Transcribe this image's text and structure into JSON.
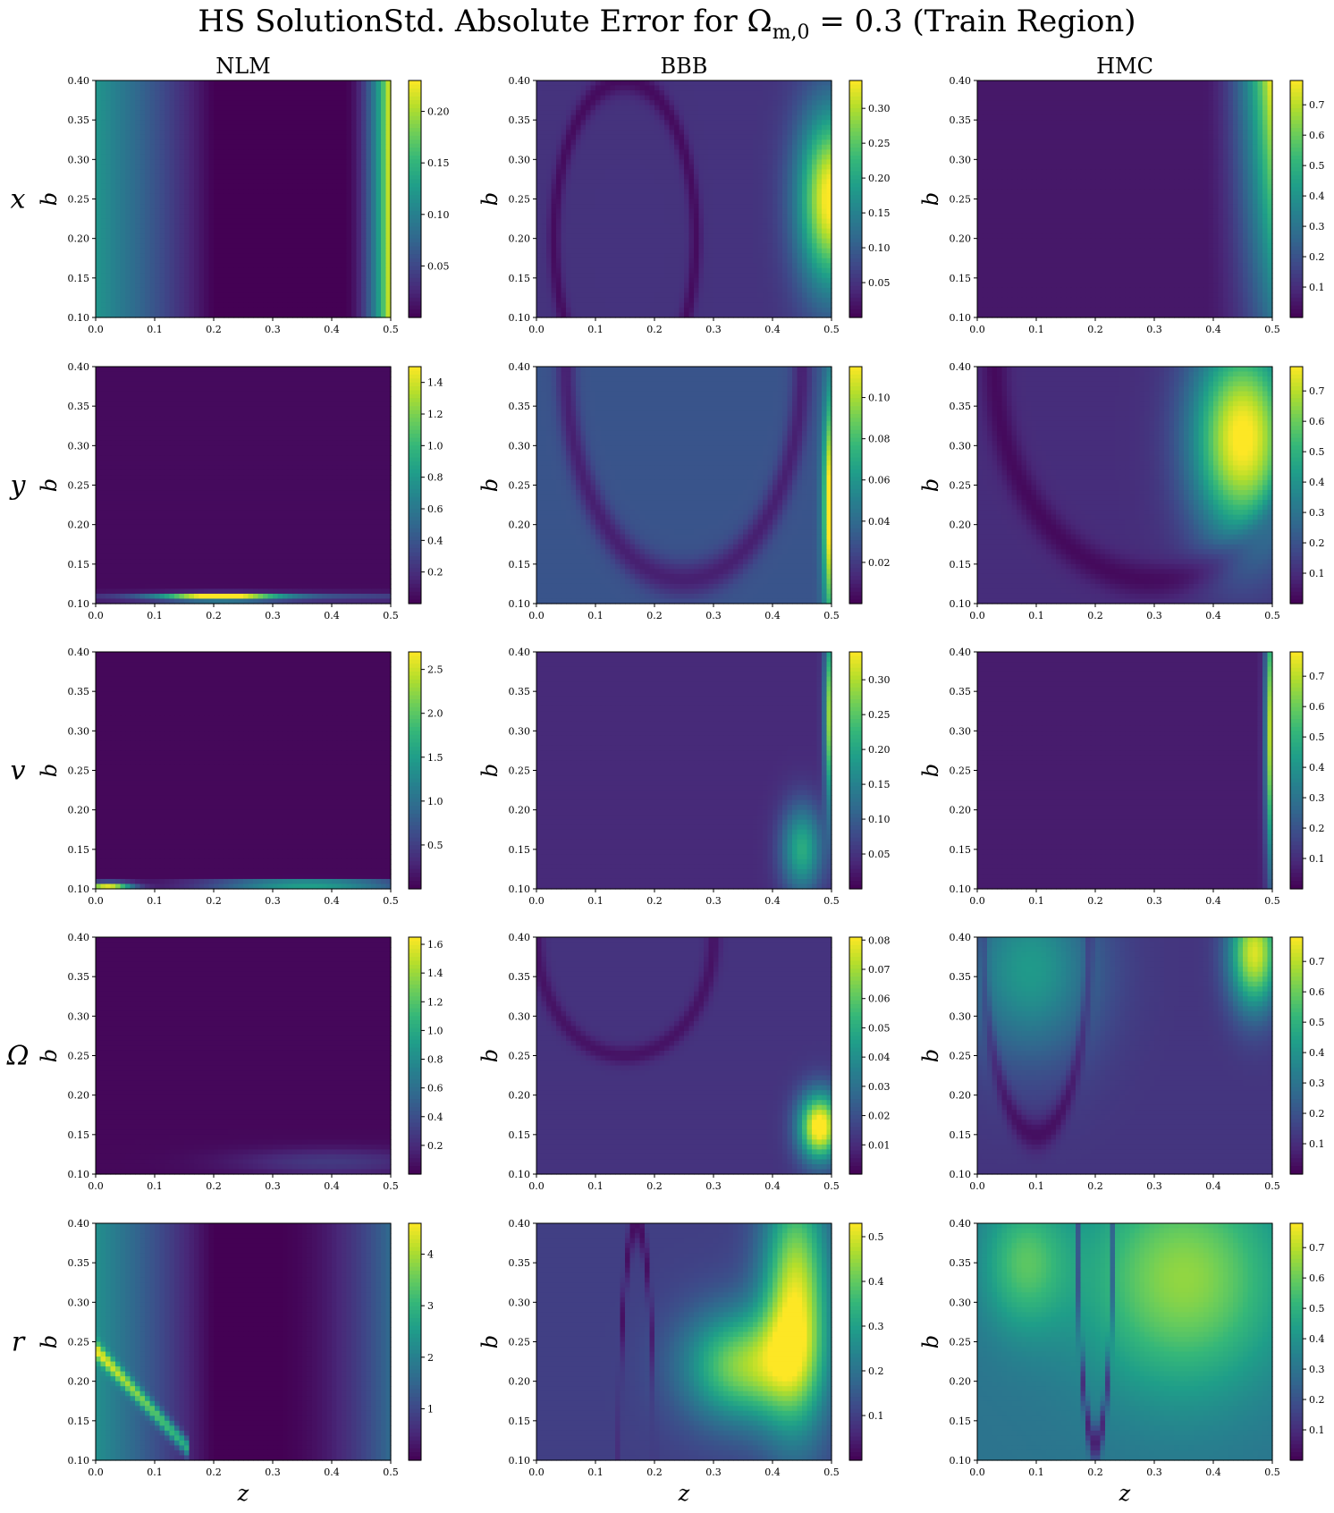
{
  "title": {
    "before": "HS SolutionStd. Absolute Error for Ω",
    "sub": "m,0",
    "after": " = 0.3 (Train Region)"
  },
  "columns": [
    "NLM",
    "BBB",
    "HMC"
  ],
  "rows": [
    "x",
    "y",
    "v",
    "Ω",
    "r"
  ],
  "colormap": [
    "#440154",
    "#482878",
    "#3e4989",
    "#31688e",
    "#26828e",
    "#1f9e89",
    "#35b779",
    "#6ece58",
    "#b5de2b",
    "#fde725"
  ],
  "chart_data": {
    "type": "heatmap",
    "xlabel": "z",
    "ylabel": "b",
    "xlim": [
      0.0,
      0.5
    ],
    "ylim": [
      0.1,
      0.4
    ],
    "xticks": [
      "0.0",
      "0.1",
      "0.2",
      "0.3",
      "0.4",
      "0.5"
    ],
    "yticks": [
      "0.10",
      "0.15",
      "0.20",
      "0.25",
      "0.30",
      "0.35",
      "0.40"
    ],
    "panels": [
      {
        "row": "x",
        "column": "NLM",
        "vmax": 0.23,
        "colorbar_ticks": [
          "0.05",
          "0.10",
          "0.15",
          "0.20"
        ],
        "colorbar_values": [
          0.05,
          0.1,
          0.15,
          0.2
        ],
        "features": [
          {
            "kind": "left",
            "amp": 0.12
          },
          {
            "kind": "right",
            "z0": 0.42,
            "amp": 0.23
          }
        ]
      },
      {
        "row": "x",
        "column": "BBB",
        "vmax": 0.34,
        "colorbar_ticks": [
          "0.05",
          "0.10",
          "0.15",
          "0.20",
          "0.25",
          "0.30"
        ],
        "colorbar_values": [
          0.05,
          0.1,
          0.15,
          0.2,
          0.25,
          0.3
        ],
        "features": [
          {
            "kind": "base",
            "amp": 0.05
          },
          {
            "kind": "blob",
            "z": 0.5,
            "b": 0.25,
            "sz": 0.04,
            "sb": 0.08,
            "amp": 0.3
          },
          {
            "kind": "arc",
            "z": 0.15,
            "b": 0.2,
            "rz": 0.12,
            "rb": 0.2,
            "amp": -0.04
          }
        ]
      },
      {
        "row": "x",
        "column": "HMC",
        "vmax": 0.78,
        "colorbar_ticks": [
          "0.1",
          "0.2",
          "0.3",
          "0.4",
          "0.5",
          "0.6",
          "0.7"
        ],
        "colorbar_values": [
          0.1,
          0.2,
          0.3,
          0.4,
          0.5,
          0.6,
          0.7
        ],
        "features": [
          {
            "kind": "base",
            "amp": 0.05
          },
          {
            "kind": "right",
            "z0": 0.38,
            "amp": 0.75,
            "btop": true
          }
        ]
      },
      {
        "row": "y",
        "column": "NLM",
        "vmax": 1.5,
        "colorbar_ticks": [
          "0.2",
          "0.4",
          "0.6",
          "0.8",
          "1.0",
          "1.2",
          "1.4"
        ],
        "colorbar_values": [
          0.2,
          0.4,
          0.6,
          0.8,
          1.0,
          1.2,
          1.4
        ],
        "features": [
          {
            "kind": "base",
            "amp": 0.04
          },
          {
            "kind": "band",
            "b": 0.108,
            "sb": 0.003,
            "z": 0.21,
            "sz": 0.07,
            "amp": 1.45
          },
          {
            "kind": "band",
            "b": 0.108,
            "sb": 0.004,
            "z": 0.3,
            "sz": 0.25,
            "amp": 0.35
          }
        ]
      },
      {
        "row": "y",
        "column": "BBB",
        "vmax": 0.115,
        "colorbar_ticks": [
          "0.02",
          "0.04",
          "0.06",
          "0.08",
          "0.10"
        ],
        "colorbar_values": [
          0.02,
          0.04,
          0.06,
          0.08,
          0.1
        ],
        "features": [
          {
            "kind": "base",
            "amp": 0.03
          },
          {
            "kind": "blob",
            "z": 0.5,
            "b": 0.22,
            "sz": 0.01,
            "sb": 0.1,
            "amp": 0.1
          },
          {
            "kind": "arc",
            "z": 0.25,
            "b": 0.4,
            "rz": 0.2,
            "rb": 0.27,
            "amp": -0.02
          }
        ]
      },
      {
        "row": "y",
        "column": "HMC",
        "vmax": 0.78,
        "colorbar_ticks": [
          "0.1",
          "0.2",
          "0.3",
          "0.4",
          "0.5",
          "0.6",
          "0.7"
        ],
        "colorbar_values": [
          0.1,
          0.2,
          0.3,
          0.4,
          0.5,
          0.6,
          0.7
        ],
        "features": [
          {
            "kind": "base",
            "amp": 0.1
          },
          {
            "kind": "blob",
            "z": 0.45,
            "b": 0.31,
            "sz": 0.06,
            "sb": 0.09,
            "amp": 0.7
          },
          {
            "kind": "arc",
            "z": 0.3,
            "b": 0.4,
            "rz": 0.27,
            "rb": 0.27,
            "amp": -0.08
          }
        ]
      },
      {
        "row": "v",
        "column": "NLM",
        "vmax": 2.7,
        "colorbar_ticks": [
          "0.5",
          "1.0",
          "1.5",
          "2.0",
          "2.5"
        ],
        "colorbar_values": [
          0.5,
          1.0,
          1.5,
          2.0,
          2.5
        ],
        "features": [
          {
            "kind": "base",
            "amp": 0.05
          },
          {
            "kind": "band",
            "b": 0.106,
            "sb": 0.003,
            "z": 0.36,
            "sz": 0.12,
            "amp": 2.3
          },
          {
            "kind": "band",
            "b": 0.104,
            "sb": 0.003,
            "z": 0.02,
            "sz": 0.03,
            "amp": 2.6
          }
        ]
      },
      {
        "row": "v",
        "column": "BBB",
        "vmax": 0.34,
        "colorbar_ticks": [
          "0.05",
          "0.10",
          "0.15",
          "0.20",
          "0.25",
          "0.30"
        ],
        "colorbar_values": [
          0.05,
          0.1,
          0.15,
          0.2,
          0.25,
          0.3
        ],
        "features": [
          {
            "kind": "base",
            "amp": 0.04
          },
          {
            "kind": "blob",
            "z": 0.45,
            "b": 0.15,
            "sz": 0.025,
            "sb": 0.04,
            "amp": 0.17
          },
          {
            "kind": "blob",
            "z": 0.5,
            "b": 0.32,
            "sz": 0.008,
            "sb": 0.08,
            "amp": 0.28
          }
        ]
      },
      {
        "row": "v",
        "column": "HMC",
        "vmax": 0.78,
        "colorbar_ticks": [
          "0.1",
          "0.2",
          "0.3",
          "0.4",
          "0.5",
          "0.6",
          "0.7"
        ],
        "colorbar_values": [
          0.1,
          0.2,
          0.3,
          0.4,
          0.5,
          0.6,
          0.7
        ],
        "features": [
          {
            "kind": "base",
            "amp": 0.06
          },
          {
            "kind": "blob",
            "z": 0.5,
            "b": 0.3,
            "sz": 0.008,
            "sb": 0.12,
            "amp": 0.72
          }
        ]
      },
      {
        "row": "Ω",
        "column": "NLM",
        "vmax": 1.65,
        "colorbar_ticks": [
          "0.2",
          "0.4",
          "0.6",
          "0.8",
          "1.0",
          "1.2",
          "1.4",
          "1.6"
        ],
        "colorbar_values": [
          0.2,
          0.4,
          0.6,
          0.8,
          1.0,
          1.2,
          1.4,
          1.6
        ],
        "features": [
          {
            "kind": "base",
            "amp": 0.03
          },
          {
            "kind": "band",
            "b": 0.115,
            "sb": 0.012,
            "z": 0.4,
            "sz": 0.12,
            "amp": 0.25
          }
        ]
      },
      {
        "row": "Ω",
        "column": "BBB",
        "vmax": 0.081,
        "colorbar_ticks": [
          "0.01",
          "0.02",
          "0.03",
          "0.04",
          "0.05",
          "0.06",
          "0.07",
          "0.08"
        ],
        "colorbar_values": [
          0.01,
          0.02,
          0.03,
          0.04,
          0.05,
          0.06,
          0.07,
          0.08
        ],
        "features": [
          {
            "kind": "base",
            "amp": 0.012
          },
          {
            "kind": "blob",
            "z": 0.48,
            "b": 0.16,
            "sz": 0.025,
            "sb": 0.03,
            "amp": 0.075
          },
          {
            "kind": "arc",
            "z": 0.15,
            "b": 0.4,
            "rz": 0.15,
            "rb": 0.15,
            "amp": -0.008
          }
        ]
      },
      {
        "row": "Ω",
        "column": "HMC",
        "vmax": 0.78,
        "colorbar_ticks": [
          "0.1",
          "0.2",
          "0.3",
          "0.4",
          "0.5",
          "0.6",
          "0.7"
        ],
        "colorbar_values": [
          0.1,
          0.2,
          0.3,
          0.4,
          0.5,
          0.6,
          0.7
        ],
        "features": [
          {
            "kind": "base",
            "amp": 0.12
          },
          {
            "kind": "blob",
            "z": 0.09,
            "b": 0.36,
            "sz": 0.08,
            "sb": 0.08,
            "amp": 0.3
          },
          {
            "kind": "blob",
            "z": 0.47,
            "b": 0.38,
            "sz": 0.03,
            "sb": 0.05,
            "amp": 0.62
          },
          {
            "kind": "arc",
            "z": 0.1,
            "b": 0.4,
            "rz": 0.09,
            "rb": 0.25,
            "amp": -0.1
          }
        ]
      },
      {
        "row": "r",
        "column": "NLM",
        "vmax": 4.6,
        "colorbar_ticks": [
          "1",
          "2",
          "3",
          "4"
        ],
        "colorbar_values": [
          1,
          2,
          3,
          4
        ],
        "features": [
          {
            "kind": "left",
            "amp": 2.3
          },
          {
            "kind": "right",
            "z0": 0.3,
            "amp": 1.6
          },
          {
            "kind": "diag",
            "amp": 2.3
          }
        ]
      },
      {
        "row": "r",
        "column": "BBB",
        "vmax": 0.53,
        "colorbar_ticks": [
          "0.1",
          "0.2",
          "0.3",
          "0.4",
          "0.5"
        ],
        "colorbar_values": [
          0.1,
          0.2,
          0.3,
          0.4,
          0.5
        ],
        "features": [
          {
            "kind": "base",
            "amp": 0.1
          },
          {
            "kind": "blob",
            "z": 0.35,
            "b": 0.22,
            "sz": 0.07,
            "sb": 0.05,
            "amp": 0.33
          },
          {
            "kind": "blob",
            "z": 0.44,
            "b": 0.3,
            "sz": 0.04,
            "sb": 0.11,
            "amp": 0.4
          },
          {
            "kind": "arc",
            "z": 0.17,
            "b": 0.1,
            "rz": 0.03,
            "rb": 0.3,
            "amp": -0.08
          }
        ]
      },
      {
        "row": "r",
        "column": "HMC",
        "vmax": 0.78,
        "colorbar_ticks": [
          "0.1",
          "0.2",
          "0.3",
          "0.4",
          "0.5",
          "0.6",
          "0.7"
        ],
        "colorbar_values": [
          0.1,
          0.2,
          0.3,
          0.4,
          0.5,
          0.6,
          0.7
        ],
        "features": [
          {
            "kind": "base",
            "amp": 0.3
          },
          {
            "kind": "blob",
            "z": 0.35,
            "b": 0.33,
            "sz": 0.12,
            "sb": 0.1,
            "amp": 0.35
          },
          {
            "kind": "blob",
            "z": 0.08,
            "b": 0.35,
            "sz": 0.05,
            "sb": 0.06,
            "amp": 0.25
          },
          {
            "kind": "arc",
            "z": 0.2,
            "b": 0.4,
            "rz": 0.03,
            "rb": 0.28,
            "amp": -0.25
          }
        ]
      }
    ]
  }
}
